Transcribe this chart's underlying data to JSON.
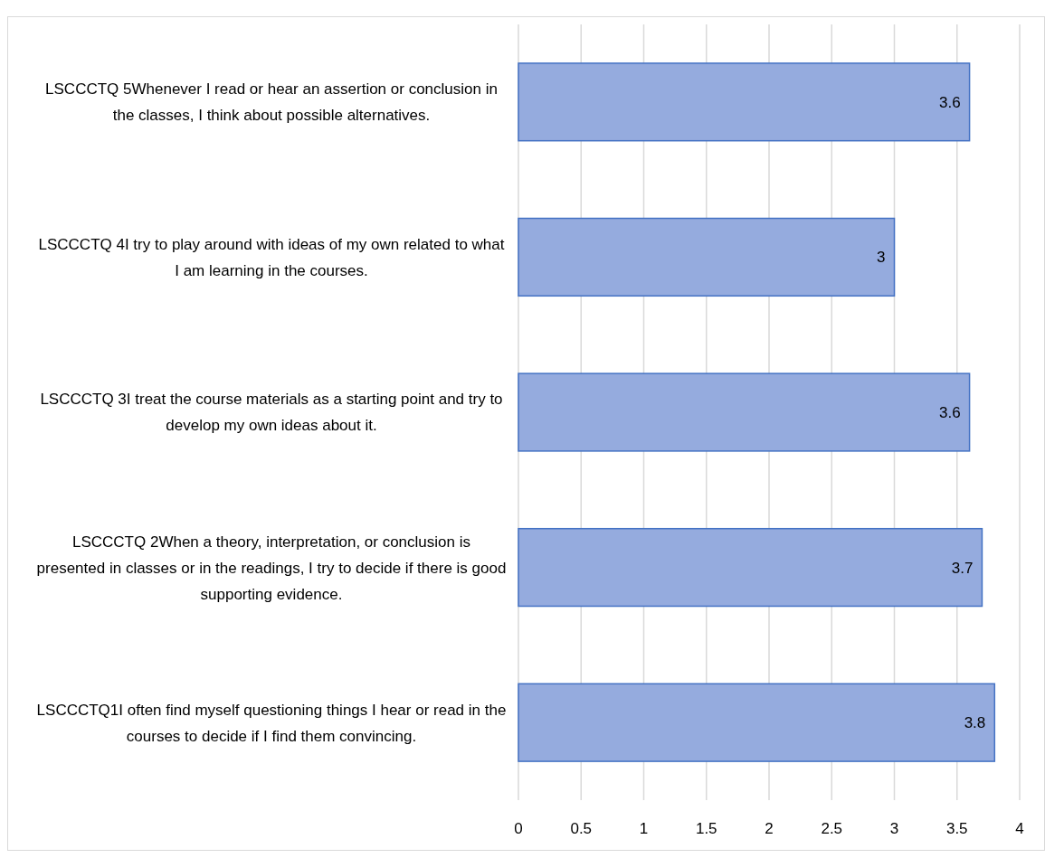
{
  "chart_data": {
    "type": "bar",
    "orientation": "horizontal",
    "categories": [
      "LSCCCTQ 5Whenever I read or hear an assertion or conclusion in the classes, I think about possible alternatives.",
      "LSCCCTQ 4I try to play around with ideas of my own related to what I am learning in the courses.",
      "LSCCCTQ 3I treat the course materials as a starting point and try to develop my own ideas about it.",
      "LSCCCTQ 2When a theory, interpretation, or conclusion is presented in classes or in the readings, I try to decide if there is good supporting evidence.",
      "LSCCCTQ1I often find myself questioning things I hear or read in the courses to decide if I find them convincing."
    ],
    "values": [
      3.6,
      3,
      3.6,
      3.7,
      3.8
    ],
    "color": "#95abde",
    "xlim": [
      0,
      4
    ],
    "xticks": [
      0,
      0.5,
      1,
      1.5,
      2,
      2.5,
      3,
      3.5,
      4
    ],
    "grid": "x",
    "data_labels": true
  }
}
